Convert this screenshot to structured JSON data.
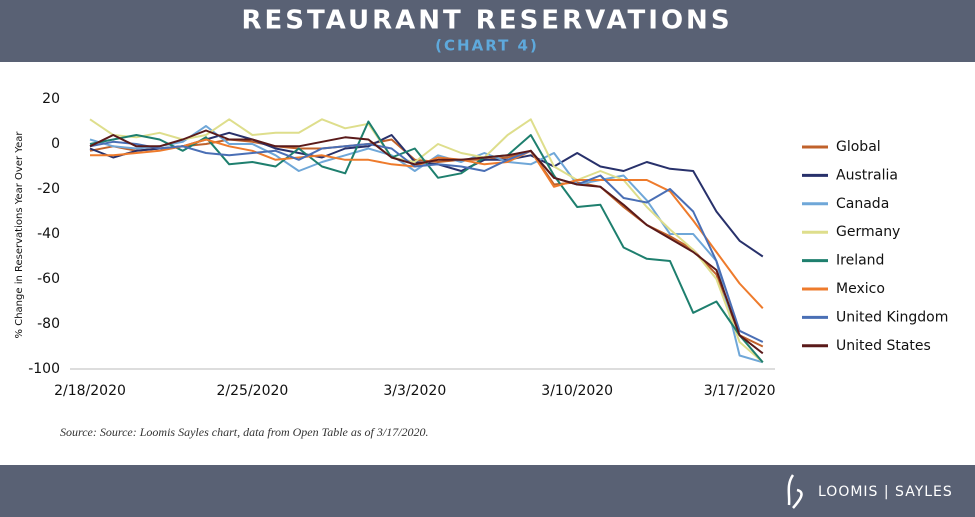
{
  "chart_data": {
    "type": "line",
    "title": "RESTAURANT RESERVATIONS",
    "subtitle": "(CHART 4)",
    "y_label": "% Change in Reservations Year Over Year",
    "source": "Source: Source: Loomis Sayles chart, data from Open Table as of 3/17/2020.",
    "brand": "LOOMIS | SAYLES",
    "categories": [
      "2/18/2020",
      null,
      null,
      null,
      null,
      null,
      null,
      "2/25/2020",
      null,
      null,
      null,
      null,
      null,
      null,
      "3/3/2020",
      null,
      null,
      null,
      null,
      null,
      null,
      "3/10/2020",
      null,
      null,
      null,
      null,
      null,
      null,
      "3/17/2020",
      null
    ],
    "ylim": [
      -100,
      20
    ],
    "yticks": [
      20,
      0,
      -20,
      -40,
      -60,
      -80,
      -100
    ],
    "grid": false,
    "legend": "right",
    "series": [
      {
        "name": "Global",
        "color": "#c0622b",
        "values": [
          -3,
          -1,
          -3,
          -2,
          -1,
          0,
          2,
          1,
          -1,
          -2,
          -2,
          -1,
          0,
          2,
          -7,
          -8,
          -7,
          -7,
          -6,
          -3,
          -18,
          -17,
          -19,
          -28,
          -36,
          -41,
          -47,
          -58,
          -85,
          -90
        ]
      },
      {
        "name": "Australia",
        "color": "#28316b",
        "values": [
          -2,
          -6,
          -3,
          -2,
          -1,
          2,
          5,
          2,
          -2,
          -4,
          -6,
          -2,
          -1,
          4,
          -8,
          -9,
          -12,
          -7,
          -7,
          -5,
          -10,
          -4,
          -10,
          -12,
          -8,
          -11,
          -12,
          -30,
          -43,
          -50
        ]
      },
      {
        "name": "Canada",
        "color": "#6fa7d8",
        "values": [
          2,
          -1,
          -2,
          -1,
          1,
          8,
          0,
          0,
          -5,
          -12,
          -8,
          -5,
          -2,
          -5,
          -12,
          -5,
          -8,
          -4,
          -8,
          -9,
          -4,
          -18,
          -16,
          -14,
          -25,
          -40,
          -40,
          -52,
          -94,
          -97
        ]
      },
      {
        "name": "Germany",
        "color": "#dede8c",
        "values": [
          11,
          4,
          3,
          5,
          2,
          4,
          11,
          4,
          5,
          5,
          11,
          7,
          9,
          -6,
          -8,
          0,
          -4,
          -6,
          4,
          11,
          -10,
          -16,
          -12,
          -16,
          -28,
          -38,
          -47,
          -60,
          -88,
          -97
        ]
      },
      {
        "name": "Ireland",
        "color": "#1e7f6e",
        "values": [
          0,
          2,
          4,
          2,
          -3,
          3,
          -9,
          -8,
          -10,
          -2,
          -10,
          -13,
          10,
          -6,
          -2,
          -15,
          -13,
          -6,
          -5,
          4,
          -14,
          -28,
          -27,
          -46,
          -51,
          -52,
          -75,
          -70,
          -85,
          -97
        ]
      },
      {
        "name": "Mexico",
        "color": "#ee7b2c",
        "values": [
          -5,
          -5,
          -4,
          -3,
          -1,
          2,
          -1,
          -3,
          -7,
          -6,
          -5,
          -7,
          -7,
          -9,
          -10,
          -6,
          -7,
          -9,
          -8,
          -3,
          -19,
          -16,
          -16,
          -16,
          -16,
          -21,
          -34,
          -48,
          -62,
          -73
        ]
      },
      {
        "name": "United Kingdom",
        "color": "#4a6fb5",
        "values": [
          -1,
          1,
          0,
          -2,
          -1,
          -4,
          -5,
          -4,
          -3,
          -7,
          -2,
          -1,
          0,
          -2,
          -10,
          -9,
          -10,
          -12,
          -7,
          -3,
          -15,
          -18,
          -14,
          -24,
          -26,
          -20,
          -30,
          -52,
          -83,
          -88
        ]
      },
      {
        "name": "United States",
        "color": "#5a1a1a",
        "values": [
          -1,
          4,
          -1,
          -1,
          2,
          6,
          2,
          2,
          -1,
          -1,
          1,
          3,
          2,
          -6,
          -9,
          -7,
          -7,
          -6,
          -5,
          -3,
          -15,
          -18,
          -19,
          -27,
          -36,
          -42,
          -48,
          -56,
          -85,
          -93
        ]
      }
    ]
  }
}
